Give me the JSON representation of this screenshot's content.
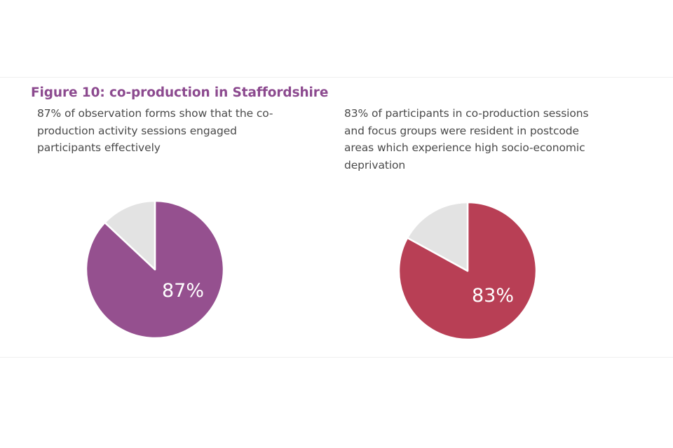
{
  "figure": {
    "title": "Figure 10: co-production in Staffordshire"
  },
  "chart_data": [
    {
      "type": "pie",
      "title": "87% of observation forms show that the co-production activity sessions engaged participants effectively",
      "caption_lines": [
        "87% of observation forms show that the co-",
        "production activity sessions engaged",
        "participants effectively"
      ],
      "slices": [
        {
          "label": "87%",
          "value": 87,
          "color": "#95508f"
        },
        {
          "label": "",
          "value": 13,
          "color": "#e3e3e3"
        }
      ],
      "data_label": "87%"
    },
    {
      "type": "pie",
      "title": "83% of participants in co-production sessions and focus groups were resident in postcode areas which experience high socio-economic deprivation",
      "caption_lines": [
        "83% of participants in co-production sessions",
        "and focus groups were resident in postcode",
        "areas which experience high socio-economic",
        "deprivation"
      ],
      "slices": [
        {
          "label": "83%",
          "value": 83,
          "color": "#b83f55"
        },
        {
          "label": "",
          "value": 17,
          "color": "#e3e3e3"
        }
      ],
      "data_label": "83%"
    }
  ]
}
